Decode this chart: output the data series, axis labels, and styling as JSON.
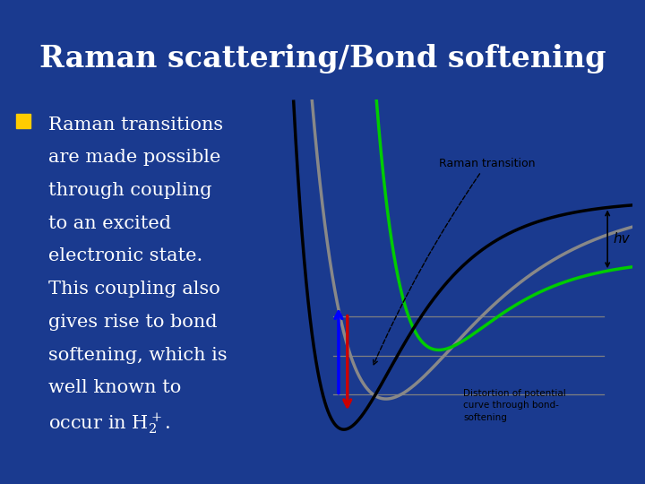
{
  "title": "Raman scattering/Bond softening",
  "bg_color": "#1a3a8f",
  "title_color": "#ffffff",
  "text_color": "#ffffff",
  "bullet_color": "#ffcc00",
  "graph_bg": "#ffffff",
  "curve_black_color": "#000000",
  "curve_gray_color": "#888888",
  "curve_green_color": "#00cc00",
  "arrow_blue_color": "#0000ff",
  "arrow_red_color": "#cc0000",
  "label_raman": "Raman transition",
  "label_distortion": "Distortion of potential\ncurve through bond-\nsoftening",
  "label_hv": "hv",
  "title_fontsize": 24,
  "text_fontsize": 15,
  "lines": [
    "Raman transitions",
    "are made possible",
    "through coupling",
    "to an excited",
    "electronic state.",
    "This coupling also",
    "gives rise to bond",
    "softening, which is",
    "well known to"
  ],
  "last_line_before": "occur in H",
  "last_line_sub": "2",
  "last_line_sup": "+",
  "last_line_after": "."
}
